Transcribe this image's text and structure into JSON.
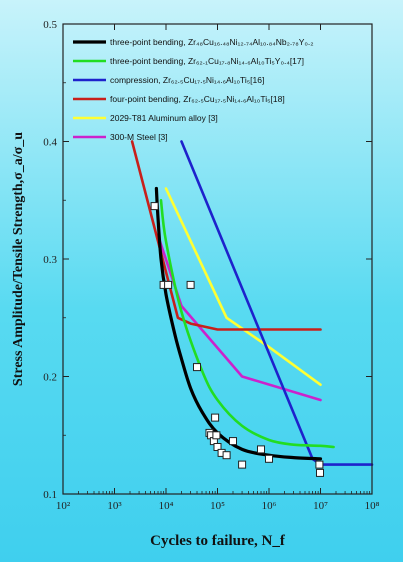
{
  "chart_data": {
    "type": "line",
    "xscale": "log",
    "xlim": [
      100,
      100000000
    ],
    "ylim": [
      0.1,
      0.5
    ],
    "xlabel": "Cycles to failure, N_f",
    "ylabel": "Stress Amplitude/Tensile Strength,σ_a/σ_u",
    "xticks": [
      {
        "value": 100,
        "label": "10²"
      },
      {
        "value": 1000,
        "label": "10³"
      },
      {
        "value": 10000,
        "label": "10⁴"
      },
      {
        "value": 100000,
        "label": "10⁵"
      },
      {
        "value": 1000000,
        "label": "10⁶"
      },
      {
        "value": 10000000,
        "label": "10⁷"
      },
      {
        "value": 100000000,
        "label": "10⁸"
      }
    ],
    "yticks": [
      {
        "value": 0.1,
        "label": "0.1"
      },
      {
        "value": 0.2,
        "label": "0.2"
      },
      {
        "value": 0.3,
        "label": "0.3"
      },
      {
        "value": 0.4,
        "label": "0.4"
      },
      {
        "value": 0.5,
        "label": "0.5"
      }
    ],
    "legend_position": "top-left",
    "series": [
      {
        "name": "three-point bending, Zr₄₈Cu₁₆.₄₈Ni₁₂.₇₄Al₁₀.₈₄Nb₂.₇₈Y₀.₂",
        "color": "#000000",
        "x": [
          6500,
          7000,
          8000,
          10000,
          15000,
          20000,
          30000,
          50000,
          100000,
          300000,
          1000000,
          3000000,
          10000000
        ],
        "y": [
          0.36,
          0.335,
          0.3,
          0.27,
          0.235,
          0.215,
          0.19,
          0.17,
          0.152,
          0.138,
          0.133,
          0.131,
          0.13
        ]
      },
      {
        "name": "three-point bending, Zr₆₂.₁Cu₁₇.₈Ni₁₄.₆Al₁₀Ti₅Y₀.₄[17]",
        "color": "#22dd22",
        "x": [
          8000,
          10000,
          20000,
          50000,
          100000,
          300000,
          1000000,
          3000000,
          10000000,
          18000000
        ],
        "y": [
          0.35,
          0.315,
          0.255,
          0.205,
          0.18,
          0.158,
          0.146,
          0.142,
          0.141,
          0.14
        ]
      },
      {
        "name": "compression, Zr₆₂.₅Cu₁₇.₅Ni₁₄.₆Al₁₀Ti₅[16]",
        "color": "#1e22cc",
        "x": [
          20000,
          7000000,
          10000000,
          100000000
        ],
        "y": [
          0.4,
          0.13,
          0.125,
          0.125
        ]
      },
      {
        "name": "four-point bending, Zr₆₂.₅Cu₁₇.₅Ni₁₄.₆Al₁₀Ti₅[18]",
        "color": "#c8201b",
        "x": [
          2200,
          17000,
          30000,
          100000,
          1000000,
          10000000
        ],
        "y": [
          0.4,
          0.25,
          0.245,
          0.24,
          0.24,
          0.24
        ]
      },
      {
        "name": "2029-T81 Aluminum alloy [3]",
        "color": "#ffff33",
        "x": [
          10000,
          150000,
          1000000,
          10000000
        ],
        "y": [
          0.36,
          0.25,
          0.225,
          0.193
        ]
      },
      {
        "name": "300-M Steel [3]",
        "color": "#cc22cc",
        "x": [
          7000,
          20000,
          300000,
          10000000
        ],
        "y": [
          0.32,
          0.26,
          0.2,
          0.18
        ]
      }
    ],
    "data_points": {
      "marker": "open-square",
      "x": [
        6000,
        9000,
        11000,
        30000,
        40000,
        70000,
        75000,
        85000,
        90000,
        95000,
        100000,
        120000,
        150000,
        200000,
        300000,
        700000,
        1000000,
        9500000,
        9800000
      ],
      "y": [
        0.345,
        0.278,
        0.278,
        0.278,
        0.208,
        0.152,
        0.15,
        0.145,
        0.165,
        0.15,
        0.14,
        0.135,
        0.133,
        0.145,
        0.125,
        0.138,
        0.13,
        0.125,
        0.118
      ]
    }
  }
}
